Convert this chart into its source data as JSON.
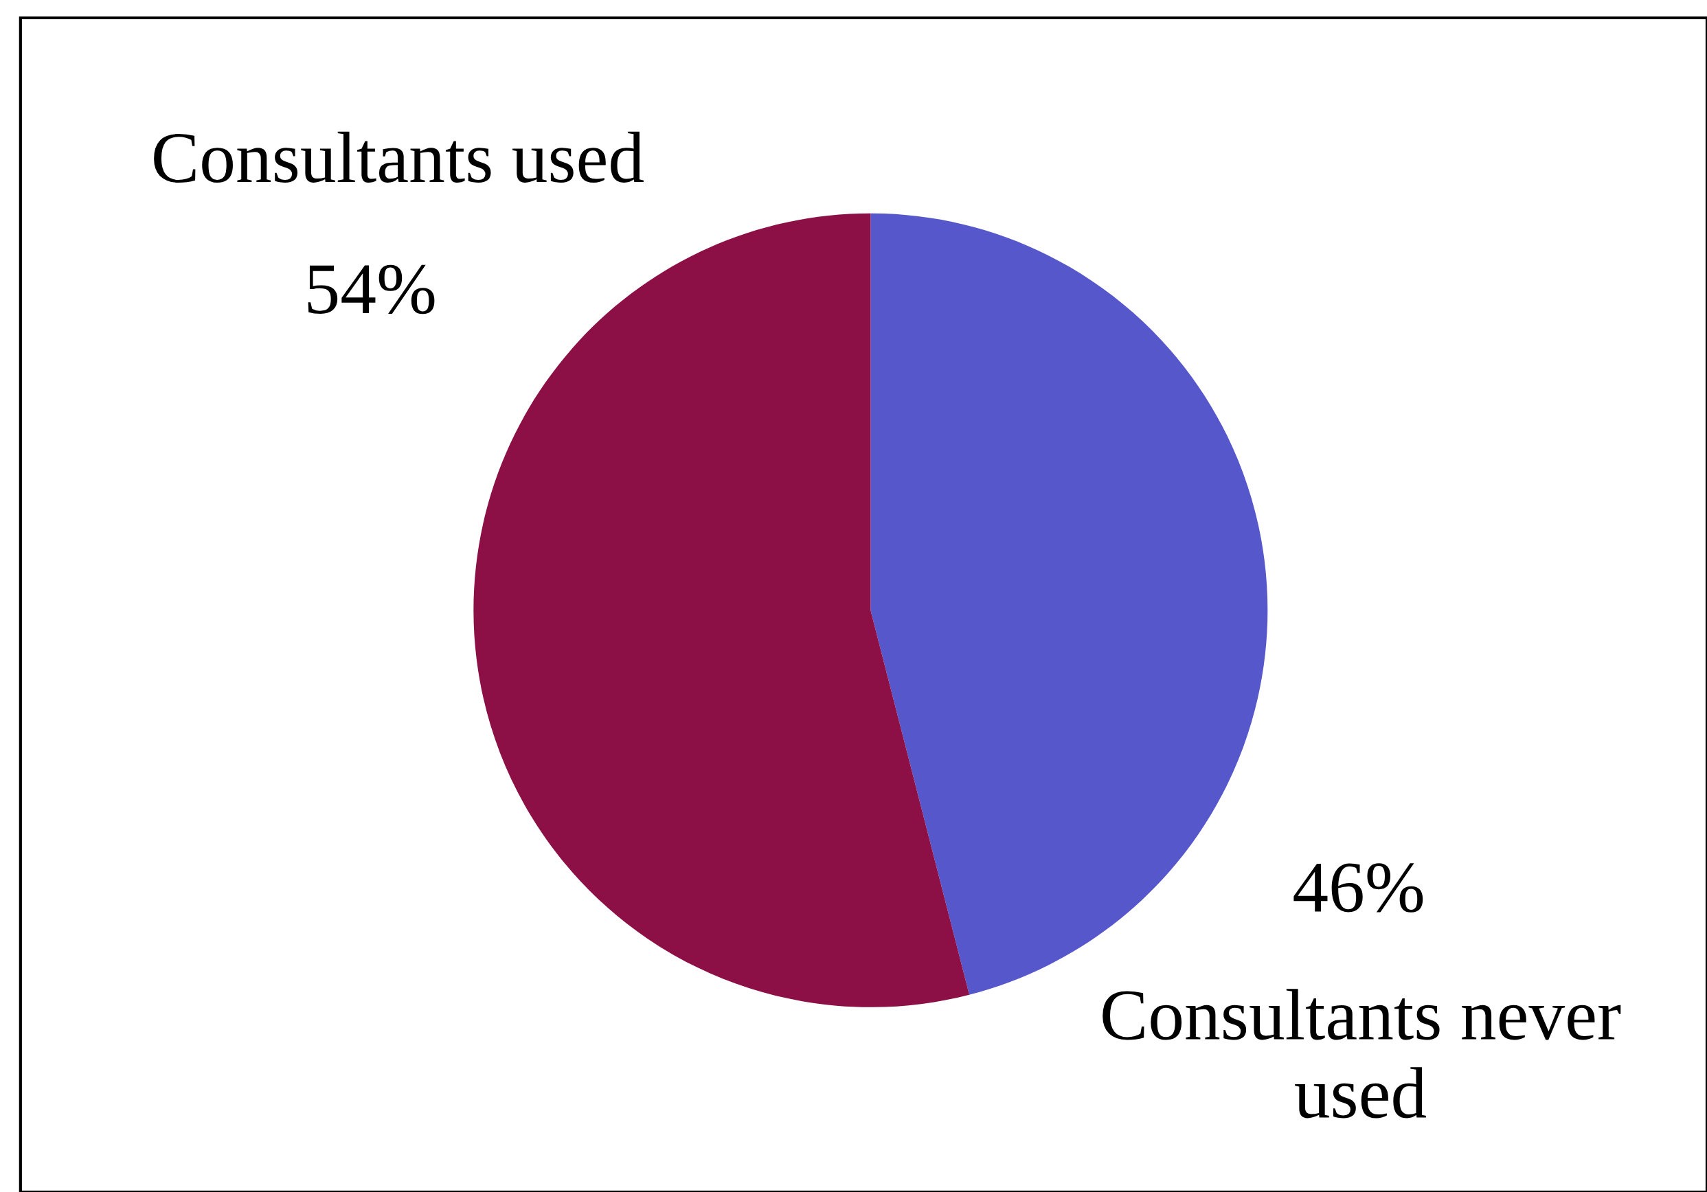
{
  "chart_data": {
    "type": "pie",
    "categories": [
      "Consultants never used",
      "Consultants used"
    ],
    "values": [
      46,
      54
    ],
    "colors": [
      "#5757cc",
      "#8c0f45"
    ],
    "value_labels": [
      "46%",
      "54%"
    ]
  }
}
